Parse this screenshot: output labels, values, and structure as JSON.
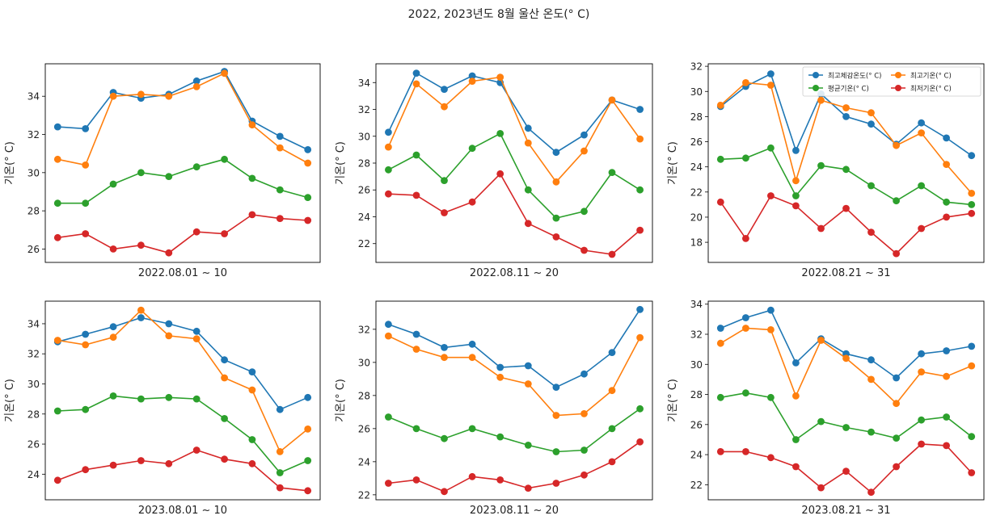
{
  "figure": {
    "suptitle": "2022, 2023년도 8월 울산 온도(° C)"
  },
  "legend": {
    "entries": [
      {
        "label": "최고체감온도(° C)",
        "color": "#1f77b4"
      },
      {
        "label": "최고기온(° C)",
        "color": "#ff7f0e"
      },
      {
        "label": "평균기온(° C)",
        "color": "#2ca02c"
      },
      {
        "label": "최저기온(° C)",
        "color": "#d62728"
      }
    ],
    "placement": "top-right of panel 3"
  },
  "chart_data": [
    {
      "type": "line",
      "xlabel": "2022.08.01 ~ 10",
      "ylabel": "기온(° C)",
      "ylim": [
        25.3,
        35.7
      ],
      "yticks": [
        26,
        28,
        30,
        32,
        34
      ],
      "series": [
        {
          "name": "최고체감온도(° C)",
          "color": "#1f77b4",
          "values": [
            32.4,
            32.3,
            34.2,
            33.9,
            34.1,
            34.8,
            35.3,
            32.7,
            31.9,
            31.2
          ]
        },
        {
          "name": "최고기온(° C)",
          "color": "#ff7f0e",
          "values": [
            30.7,
            30.4,
            34.0,
            34.1,
            34.0,
            34.5,
            35.2,
            32.5,
            31.3,
            30.5
          ]
        },
        {
          "name": "평균기온(° C)",
          "color": "#2ca02c",
          "values": [
            28.4,
            28.4,
            29.4,
            30.0,
            29.8,
            30.3,
            30.7,
            29.7,
            29.1,
            28.7
          ]
        },
        {
          "name": "최저기온(° C)",
          "color": "#d62728",
          "values": [
            26.6,
            26.8,
            26.0,
            26.2,
            25.8,
            26.9,
            26.8,
            27.8,
            27.6,
            27.5
          ]
        }
      ]
    },
    {
      "type": "line",
      "xlabel": "2022.08.11 ~ 20",
      "ylabel": "기온(° C)",
      "ylim": [
        20.6,
        35.4
      ],
      "yticks": [
        22,
        24,
        26,
        28,
        30,
        32,
        34
      ],
      "series": [
        {
          "name": "최고체감온도(° C)",
          "color": "#1f77b4",
          "values": [
            30.3,
            34.7,
            33.5,
            34.5,
            34.0,
            30.6,
            28.8,
            30.1,
            32.7,
            32.0
          ]
        },
        {
          "name": "최고기온(° C)",
          "color": "#ff7f0e",
          "values": [
            29.2,
            33.9,
            32.2,
            34.1,
            34.4,
            29.5,
            26.6,
            28.9,
            32.7,
            29.8
          ]
        },
        {
          "name": "평균기온(° C)",
          "color": "#2ca02c",
          "values": [
            27.5,
            28.6,
            26.7,
            29.1,
            30.2,
            26.0,
            23.9,
            24.4,
            27.3,
            26.0
          ]
        },
        {
          "name": "최저기온(° C)",
          "color": "#d62728",
          "values": [
            25.7,
            25.6,
            24.3,
            25.1,
            27.2,
            23.5,
            22.5,
            21.5,
            21.2,
            23.0
          ]
        }
      ]
    },
    {
      "type": "line",
      "xlabel": "2022.08.21 ~ 31",
      "ylabel": "기온(° C)",
      "ylim": [
        16.4,
        32.2
      ],
      "yticks": [
        18,
        20,
        22,
        24,
        26,
        28,
        30,
        32
      ],
      "series": [
        {
          "name": "최고체감온도(° C)",
          "color": "#1f77b4",
          "values": [
            28.8,
            30.4,
            31.4,
            25.3,
            29.8,
            28.0,
            27.4,
            25.8,
            27.5,
            26.3,
            24.9
          ]
        },
        {
          "name": "최고기온(° C)",
          "color": "#ff7f0e",
          "values": [
            28.9,
            30.7,
            30.5,
            22.9,
            29.3,
            28.7,
            28.3,
            25.7,
            26.7,
            24.2,
            21.9
          ]
        },
        {
          "name": "평균기온(° C)",
          "color": "#2ca02c",
          "values": [
            24.6,
            24.7,
            25.5,
            21.7,
            24.1,
            23.8,
            22.5,
            21.3,
            22.5,
            21.2,
            21.0
          ]
        },
        {
          "name": "최저기온(° C)",
          "color": "#d62728",
          "values": [
            21.2,
            18.3,
            21.7,
            20.9,
            19.1,
            20.7,
            18.8,
            17.1,
            19.1,
            20.0,
            20.3
          ]
        }
      ]
    },
    {
      "type": "line",
      "xlabel": "2023.08.01 ~ 10",
      "ylabel": "기온(° C)",
      "ylim": [
        22.3,
        35.5
      ],
      "yticks": [
        24,
        26,
        28,
        30,
        32,
        34
      ],
      "series": [
        {
          "name": "최고체감온도(° C)",
          "color": "#1f77b4",
          "values": [
            32.8,
            33.3,
            33.8,
            34.4,
            34.0,
            33.5,
            31.6,
            30.8,
            28.3,
            29.1
          ]
        },
        {
          "name": "최고기온(° C)",
          "color": "#ff7f0e",
          "values": [
            32.9,
            32.6,
            33.1,
            34.9,
            33.2,
            33.0,
            30.4,
            29.6,
            25.5,
            27.0
          ]
        },
        {
          "name": "평균기온(° C)",
          "color": "#2ca02c",
          "values": [
            28.2,
            28.3,
            29.2,
            29.0,
            29.1,
            29.0,
            27.7,
            26.3,
            24.1,
            24.9
          ]
        },
        {
          "name": "최저기온(° C)",
          "color": "#d62728",
          "values": [
            23.6,
            24.3,
            24.6,
            24.9,
            24.7,
            25.6,
            25.0,
            24.7,
            23.1,
            22.9
          ]
        }
      ]
    },
    {
      "type": "line",
      "xlabel": "2023.08.11 ~ 20",
      "ylabel": "기온(° C)",
      "ylim": [
        21.7,
        33.7
      ],
      "yticks": [
        22,
        24,
        26,
        28,
        30,
        32
      ],
      "series": [
        {
          "name": "최고체감온도(° C)",
          "color": "#1f77b4",
          "values": [
            32.3,
            31.7,
            30.9,
            31.1,
            29.7,
            29.8,
            28.5,
            29.3,
            30.6,
            33.2
          ]
        },
        {
          "name": "최고기온(° C)",
          "color": "#ff7f0e",
          "values": [
            31.6,
            30.8,
            30.3,
            30.3,
            29.1,
            28.7,
            26.8,
            26.9,
            28.3,
            31.5
          ]
        },
        {
          "name": "평균기온(° C)",
          "color": "#2ca02c",
          "values": [
            26.7,
            26.0,
            25.4,
            26.0,
            25.5,
            25.0,
            24.6,
            24.7,
            26.0,
            27.2
          ]
        },
        {
          "name": "최저기온(° C)",
          "color": "#d62728",
          "values": [
            22.7,
            22.9,
            22.2,
            23.1,
            22.9,
            22.4,
            22.7,
            23.2,
            24.0,
            25.2
          ]
        }
      ]
    },
    {
      "type": "line",
      "xlabel": "2023.08.21 ~ 31",
      "ylabel": "기온(° C)",
      "ylim": [
        21.0,
        34.2
      ],
      "yticks": [
        22,
        24,
        26,
        28,
        30,
        32,
        34
      ],
      "series": [
        {
          "name": "최고체감온도(° C)",
          "color": "#1f77b4",
          "values": [
            32.4,
            33.1,
            33.6,
            30.1,
            31.7,
            30.7,
            30.3,
            29.1,
            30.7,
            30.9,
            31.2
          ]
        },
        {
          "name": "최고기온(° C)",
          "color": "#ff7f0e",
          "values": [
            31.4,
            32.4,
            32.3,
            27.9,
            31.6,
            30.4,
            29.0,
            27.4,
            29.5,
            29.2,
            29.9
          ]
        },
        {
          "name": "평균기온(° C)",
          "color": "#2ca02c",
          "values": [
            27.8,
            28.1,
            27.8,
            25.0,
            26.2,
            25.8,
            25.5,
            25.1,
            26.3,
            26.5,
            25.2
          ]
        },
        {
          "name": "최저기온(° C)",
          "color": "#d62728",
          "values": [
            24.2,
            24.2,
            23.8,
            23.2,
            21.8,
            22.9,
            21.5,
            23.2,
            24.7,
            24.6,
            22.8
          ]
        }
      ]
    }
  ]
}
